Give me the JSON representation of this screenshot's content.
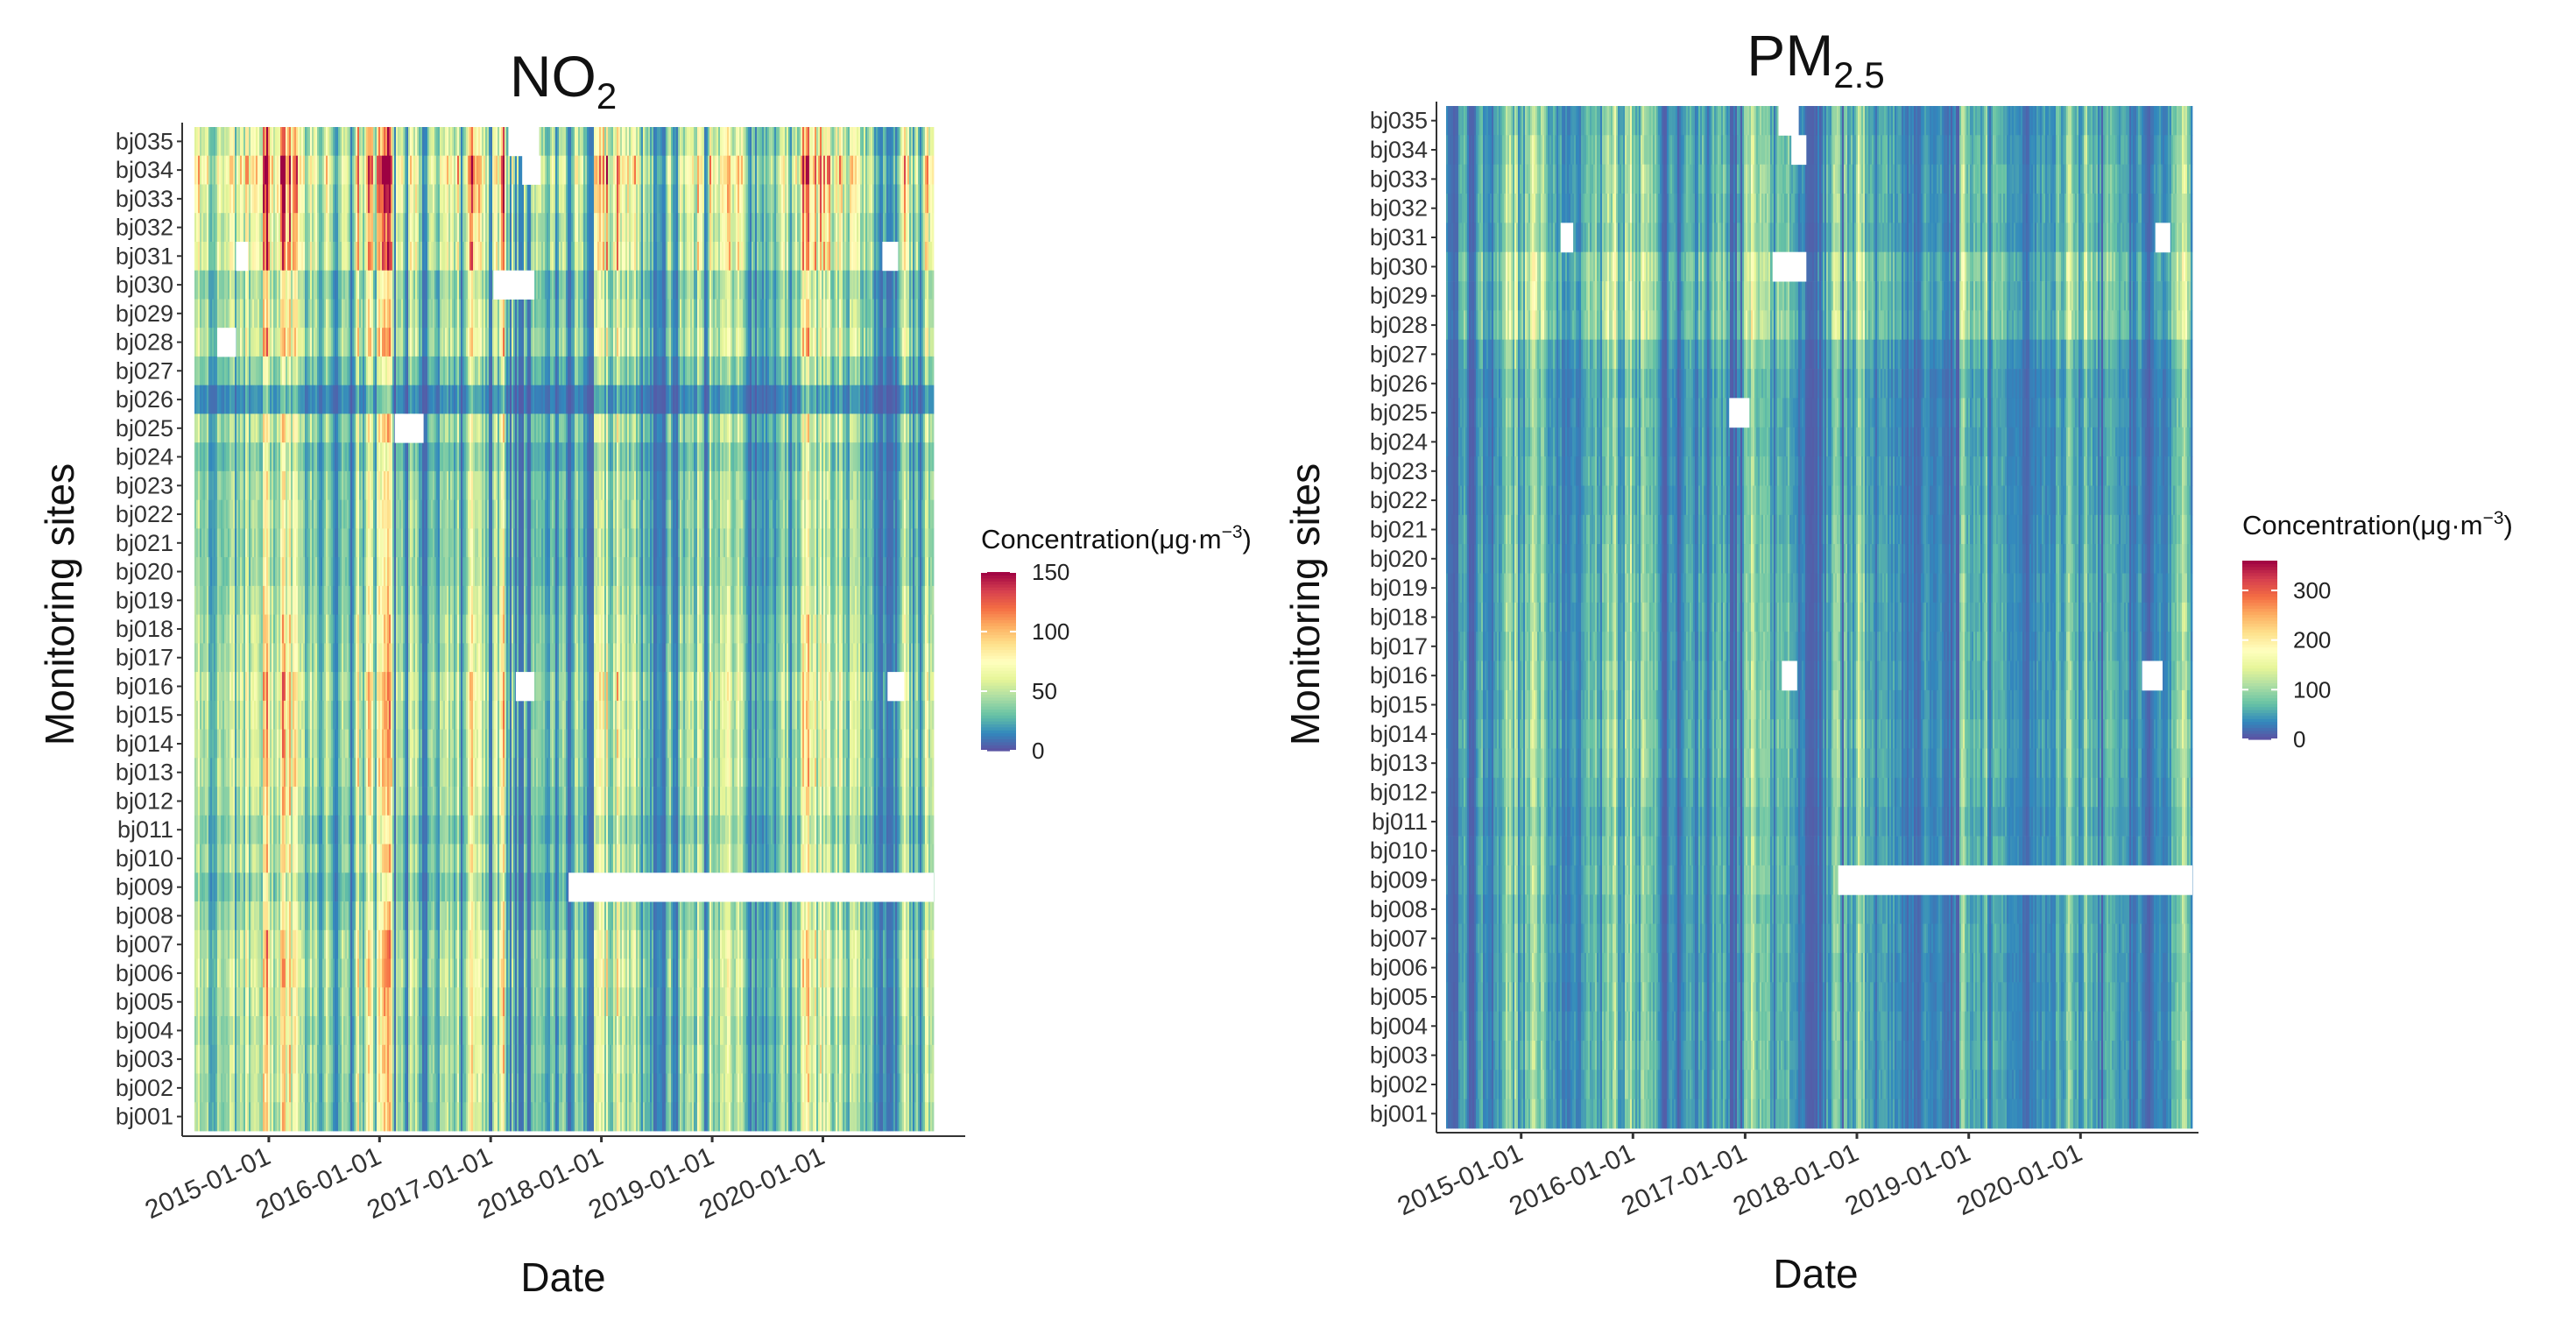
{
  "chart_data": [
    {
      "type": "heatmap",
      "title": "NO",
      "title_subscript": "2",
      "xlabel": "Date",
      "ylabel": "Monitoring sites",
      "x_range": [
        "2014-05-01",
        "2020-12-31"
      ],
      "x_ticks": [
        "2015-01-01",
        "2016-01-01",
        "2017-01-01",
        "2018-01-01",
        "2019-01-01",
        "2020-01-01"
      ],
      "sites": [
        "bj035",
        "bj034",
        "bj033",
        "bj032",
        "bj031",
        "bj030",
        "bj029",
        "bj028",
        "bj027",
        "bj026",
        "bj025",
        "bj024",
        "bj023",
        "bj022",
        "bj021",
        "bj020",
        "bj019",
        "bj018",
        "bj017",
        "bj016",
        "bj015",
        "bj014",
        "bj013",
        "bj012",
        "bj011",
        "bj010",
        "bj009",
        "bj008",
        "bj007",
        "bj006",
        "bj005",
        "bj004",
        "bj003",
        "bj002",
        "bj001"
      ],
      "colorbar": {
        "title": "Concentration(μg·m",
        "title_sup": "−3",
        "title_end": ")",
        "min": 0,
        "max": 150,
        "ticks": [
          "0",
          "50",
          "100",
          "150"
        ],
        "tick_values": [
          0,
          50,
          100,
          150
        ],
        "colors": [
          "#5e4fa2",
          "#3288bd",
          "#66c2a5",
          "#abdda4",
          "#e6f598",
          "#ffffbf",
          "#fee08b",
          "#fdae61",
          "#f46d43",
          "#d53e4f",
          "#9e0142"
        ]
      },
      "site_level": {
        "bj035": 60,
        "bj034": 80,
        "bj033": 70,
        "bj032": 62,
        "bj031": 66,
        "bj030": 44,
        "bj029": 48,
        "bj028": 54,
        "bj027": 36,
        "bj026": 18,
        "bj025": 46,
        "bj024": 34,
        "bj023": 42,
        "bj022": 42,
        "bj021": 40,
        "bj020": 40,
        "bj019": 44,
        "bj018": 48,
        "bj017": 48,
        "bj016": 56,
        "bj015": 52,
        "bj014": 52,
        "bj013": 52,
        "bj012": 48,
        "bj011": 40,
        "bj010": 46,
        "bj009": 36,
        "bj008": 44,
        "bj007": 52,
        "bj006": 54,
        "bj005": 50,
        "bj004": 46,
        "bj003": 48,
        "bj002": 46,
        "bj001": 46
      },
      "missing": [
        {
          "site": "bj035",
          "from": "2017-03-01",
          "to": "2017-06-10"
        },
        {
          "site": "bj034",
          "from": "2017-04-15",
          "to": "2017-06-15"
        },
        {
          "site": "bj031",
          "from": "2014-09-15",
          "to": "2014-10-25"
        },
        {
          "site": "bj031",
          "from": "2020-07-15",
          "to": "2020-09-05"
        },
        {
          "site": "bj030",
          "from": "2017-01-10",
          "to": "2017-05-25"
        },
        {
          "site": "bj028",
          "from": "2014-07-15",
          "to": "2014-09-15"
        },
        {
          "site": "bj025",
          "from": "2016-02-20",
          "to": "2016-05-25"
        },
        {
          "site": "bj016",
          "from": "2017-03-25",
          "to": "2017-05-25"
        },
        {
          "site": "bj016",
          "from": "2020-08-01",
          "to": "2020-09-25"
        },
        {
          "site": "bj009",
          "from": "2017-09-15",
          "to": "2020-12-31"
        }
      ]
    },
    {
      "type": "heatmap",
      "title": "PM",
      "title_subscript": "2.5",
      "xlabel": "Date",
      "ylabel": "Monitoring sites",
      "x_range": [
        "2014-05-01",
        "2020-12-31"
      ],
      "x_ticks": [
        "2015-01-01",
        "2016-01-01",
        "2017-01-01",
        "2018-01-01",
        "2019-01-01",
        "2020-01-01"
      ],
      "sites": [
        "bj035",
        "bj034",
        "bj033",
        "bj032",
        "bj031",
        "bj030",
        "bj029",
        "bj028",
        "bj027",
        "bj026",
        "bj025",
        "bj024",
        "bj023",
        "bj022",
        "bj021",
        "bj020",
        "bj019",
        "bj018",
        "bj017",
        "bj016",
        "bj015",
        "bj014",
        "bj013",
        "bj012",
        "bj011",
        "bj010",
        "bj009",
        "bj008",
        "bj007",
        "bj006",
        "bj005",
        "bj004",
        "bj003",
        "bj002",
        "bj001"
      ],
      "colorbar": {
        "title": "Concentration(μg·m",
        "title_sup": "−3",
        "title_end": ")",
        "min": 0,
        "max": 360,
        "ticks": [
          "0",
          "100",
          "200",
          "300"
        ],
        "tick_values": [
          0,
          100,
          200,
          300
        ],
        "colors": [
          "#5e4fa2",
          "#3288bd",
          "#66c2a5",
          "#abdda4",
          "#e6f598",
          "#ffffbf",
          "#fee08b",
          "#fdae61",
          "#f46d43",
          "#d53e4f",
          "#9e0142"
        ]
      },
      "site_level": {
        "bj035": 58,
        "bj034": 62,
        "bj033": 66,
        "bj032": 64,
        "bj031": 62,
        "bj030": 82,
        "bj029": 76,
        "bj028": 80,
        "bj027": 56,
        "bj026": 48,
        "bj025": 50,
        "bj024": 48,
        "bj023": 50,
        "bj022": 50,
        "bj021": 52,
        "bj020": 54,
        "bj019": 56,
        "bj018": 56,
        "bj017": 56,
        "bj016": 58,
        "bj015": 58,
        "bj014": 62,
        "bj013": 60,
        "bj012": 56,
        "bj011": 52,
        "bj010": 56,
        "bj009": 56,
        "bj008": 52,
        "bj007": 54,
        "bj006": 52,
        "bj005": 52,
        "bj004": 54,
        "bj003": 54,
        "bj002": 52,
        "bj001": 52
      },
      "missing": [
        {
          "site": "bj035",
          "from": "2017-04-20",
          "to": "2017-06-25"
        },
        {
          "site": "bj034",
          "from": "2017-06-01",
          "to": "2017-07-20"
        },
        {
          "site": "bj031",
          "from": "2015-05-10",
          "to": "2015-06-20"
        },
        {
          "site": "bj031",
          "from": "2020-09-01",
          "to": "2020-10-20"
        },
        {
          "site": "bj030",
          "from": "2017-04-01",
          "to": "2017-07-20"
        },
        {
          "site": "bj025",
          "from": "2016-11-10",
          "to": "2017-01-15"
        },
        {
          "site": "bj016",
          "from": "2017-05-01",
          "to": "2017-06-20"
        },
        {
          "site": "bj016",
          "from": "2020-07-20",
          "to": "2020-09-25"
        },
        {
          "site": "bj009",
          "from": "2017-11-01",
          "to": "2020-12-31"
        }
      ]
    }
  ]
}
